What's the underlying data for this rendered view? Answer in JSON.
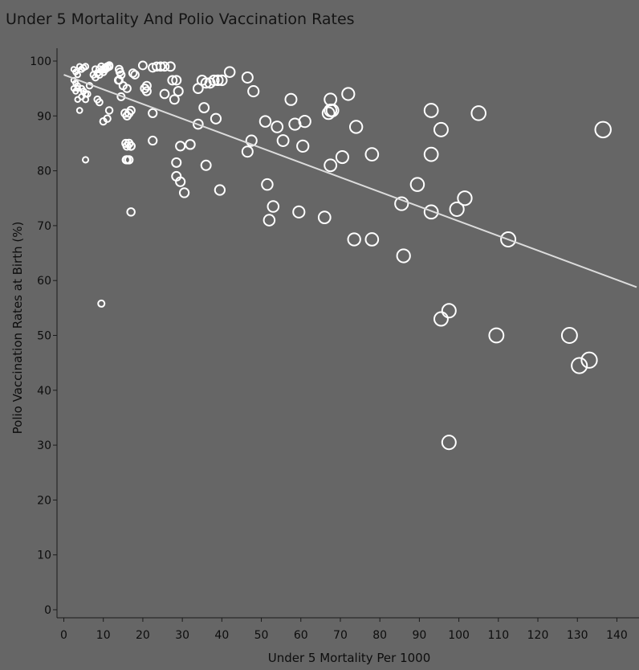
{
  "chart_data": {
    "type": "scatter",
    "title": "Under 5 Mortality And Polio Vaccination Rates",
    "xlabel": "Under 5 Mortality Per 1000",
    "ylabel": "Polio Vaccination Rates at Birth (%)",
    "xlim": [
      0,
      145
    ],
    "ylim": [
      0,
      100
    ],
    "xticks": [
      0,
      10,
      20,
      30,
      40,
      50,
      60,
      70,
      80,
      90,
      100,
      110,
      120,
      130,
      140
    ],
    "yticks": [
      0,
      10,
      20,
      30,
      40,
      50,
      60,
      70,
      80,
      90,
      100
    ],
    "marker": "hollow circle, size increases with x",
    "grid": false,
    "point_color": "#ffffff",
    "trend_color": "#dcdcdc",
    "background_color": "#666666",
    "trendline": {
      "x": [
        0,
        145
      ],
      "y": [
        97.5,
        58.8
      ]
    },
    "x": [
      2.5,
      3,
      3.5,
      4,
      4.5,
      5,
      5.5,
      2.5,
      3,
      3.5,
      4.5,
      5,
      5.5,
      6,
      6.5,
      2.5,
      3,
      3.5,
      4.5,
      7.5,
      8,
      8.5,
      9,
      3.5,
      4,
      5.5,
      8.5,
      9,
      8,
      9.5,
      10,
      10.5,
      11,
      11.5,
      9,
      10,
      10.5,
      11,
      11.5,
      14,
      14.2,
      14.5,
      13.8,
      14,
      15,
      16,
      14.5,
      15.5,
      16,
      16.5,
      17,
      17.5,
      18,
      20,
      21,
      22.5,
      23.5,
      24.5,
      25.5,
      27,
      20.5,
      21,
      25.5,
      28,
      29,
      27.5,
      28.5,
      34,
      35,
      36,
      37,
      38,
      39,
      40,
      42,
      46.5,
      48,
      35.5,
      38.5,
      34,
      15.7,
      16,
      16.5,
      17,
      10,
      11.5,
      11,
      16,
      17,
      16.5,
      15.8,
      22.5,
      29.5,
      32,
      28.5,
      28.5,
      29.5,
      30.5,
      36,
      39.5,
      22.5,
      17,
      9.5,
      5.5,
      57.5,
      67.5,
      72,
      58.5,
      61,
      51,
      54,
      55.5,
      60.5,
      47.5,
      46.5,
      67.5,
      67,
      68,
      70.5,
      74,
      78,
      93,
      95.5,
      105,
      136.5,
      93,
      89.5,
      101.5,
      99.5,
      93,
      85.5,
      112.5,
      67.5,
      52,
      53,
      59.5,
      66,
      51.5,
      73.5,
      78,
      86,
      97.5,
      95.5,
      109.5,
      128,
      133,
      130.5,
      97.5
    ],
    "y": [
      98.5,
      98,
      97.5,
      99,
      98.5,
      98.8,
      99,
      96.5,
      96,
      95.5,
      95,
      94.5,
      94,
      94,
      95.5,
      95,
      94.5,
      95,
      93.5,
      97.5,
      97,
      97.8,
      98.5,
      93,
      91,
      93,
      93,
      92.5,
      98.5,
      99,
      98.5,
      98.8,
      99,
      99.2,
      97.5,
      98,
      98.5,
      98.8,
      99,
      98.5,
      98,
      97.5,
      96.5,
      96.5,
      95.5,
      95,
      93.5,
      90.5,
      90,
      90.5,
      91,
      97.8,
      97.5,
      99.2,
      95.5,
      98.8,
      99,
      99,
      99,
      99,
      95,
      94.5,
      94,
      93,
      94.5,
      96.5,
      96.5,
      95,
      96.5,
      96,
      96,
      96.5,
      96.5,
      96.5,
      98,
      97,
      94.5,
      91.5,
      89.5,
      88.5,
      85,
      84.5,
      85,
      84.5,
      89,
      91,
      89.5,
      82,
      72.5,
      82,
      82,
      85.5,
      84.5,
      84.8,
      81.5,
      79,
      78,
      76,
      81,
      76.5,
      90.5,
      84.5,
      55.8,
      82,
      93,
      93,
      94,
      88.5,
      89,
      89,
      88,
      85.5,
      84.5,
      85.5,
      83.5,
      91,
      90.5,
      91,
      82.5,
      88,
      83,
      91,
      87.5,
      90.5,
      87.5,
      83,
      77.5,
      75,
      73,
      72.5,
      74,
      67.5,
      81,
      71,
      73.5,
      72.5,
      71.5,
      77.5,
      67.5,
      67.5,
      64.5,
      54.5,
      53,
      50,
      50,
      45.5,
      44.5,
      30.5
    ]
  }
}
